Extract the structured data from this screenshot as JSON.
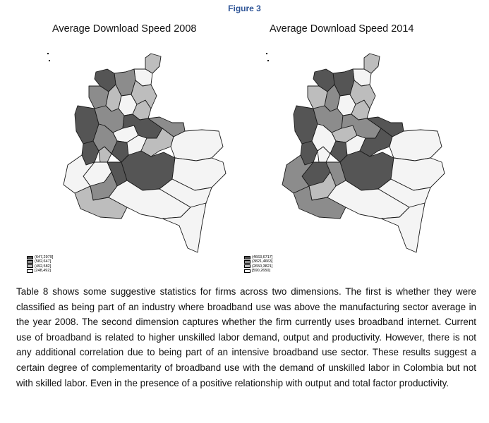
{
  "figure_label": "Figure 3",
  "maps": [
    {
      "title": "Average Download Speed 2008",
      "legend": [
        "(647,2979]",
        "(582,647]",
        "(492,582]",
        "[248,492]"
      ],
      "region_classes": [
        "c3",
        "c4",
        "c2",
        "c1",
        "c2",
        "c3",
        "c4",
        "c3",
        "c1",
        "c2",
        "c3",
        "c4",
        "c1",
        "c2",
        "c1",
        "c3",
        "c2",
        "c1",
        "c4",
        "c3",
        "c1",
        "c4",
        "c4",
        "c1",
        "c2",
        "c3",
        "c4",
        "c4",
        "c4",
        "c4",
        "c4"
      ]
    },
    {
      "title": "Average Download Speed 2014",
      "legend": [
        "(4663,6717]",
        "(3821,4663]",
        "(2650,3821]",
        "[590,2650]"
      ],
      "region_classes": [
        "c3",
        "c4",
        "c1",
        "c1",
        "c3",
        "c2",
        "c4",
        "c3",
        "c1",
        "c2",
        "c3",
        "c3",
        "c2",
        "c1",
        "c1",
        "c4",
        "c4",
        "c1",
        "c4",
        "c1",
        "c1",
        "c1",
        "c2",
        "c2",
        "c3",
        "c2",
        "c4",
        "c4",
        "c4",
        "c4",
        "c4"
      ]
    }
  ],
  "colors": {
    "c1": "#555555",
    "c2": "#8c8c8c",
    "c3": "#bdbdbd",
    "c4": "#f4f4f4",
    "figure_label": "#2f5597"
  },
  "body_text": "Table 8 shows some suggestive statistics for firms across two dimensions. The first is whether they were classified as being part of an industry where broadband use was above the manufacturing sector average in the year 2008. The second dimension captures whether the firm currently uses broadband internet. Current use of broadband is related to higher unskilled labor demand, output and productivity. However, there is not any additional correlation due to being part of an intensive broadband use sector. These results suggest a certain degree of complementarity of broadband use with the demand of unskilled labor in Colombia but not with skilled labor. Even in the presence of a positive relationship with output and total factor productivity."
}
